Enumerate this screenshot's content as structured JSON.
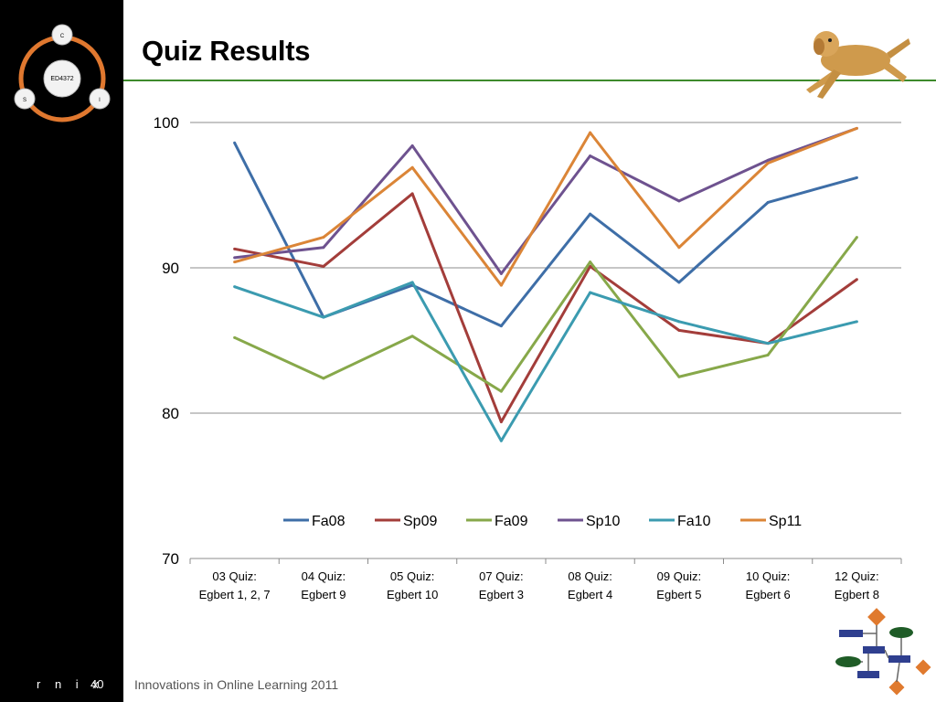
{
  "slide": {
    "title": "Quiz Results",
    "footer_author": "r n i x",
    "footer_page": "40",
    "footer_text": "Innovations in Online Learning 2011",
    "logo": {
      "center": "ED4372",
      "top": "C",
      "left": "S",
      "right": "I"
    }
  },
  "colors": {
    "rule": "#3d8a2c",
    "Fa08": "#3e6ea7",
    "Sp09": "#a33d3a",
    "Fa09": "#87a84a",
    "Sp10": "#6e528f",
    "Fa10": "#3b9bb0",
    "Sp11": "#db8537"
  },
  "chart_data": {
    "type": "line",
    "title": "",
    "xlabel": "",
    "ylabel": "",
    "y_ticks": [
      70,
      80,
      90,
      100
    ],
    "y_tick_labels": [
      "70",
      "80",
      "90",
      "100"
    ],
    "grid": true,
    "legend_position": "inside-bottom",
    "categories": [
      [
        "03 Quiz:",
        "Egbert 1, 2, 7"
      ],
      [
        "04 Quiz:",
        "Egbert 9"
      ],
      [
        "05 Quiz:",
        "Egbert 10"
      ],
      [
        "07 Quiz:",
        "Egbert 3"
      ],
      [
        "08 Quiz:",
        "Egbert 4"
      ],
      [
        "09 Quiz:",
        "Egbert 5"
      ],
      [
        "10 Quiz:",
        "Egbert 6"
      ],
      [
        "12 Quiz:",
        "Egbert 8"
      ]
    ],
    "series": [
      {
        "name": "Fa08",
        "values": [
          98.6,
          86.6,
          88.8,
          86.0,
          93.7,
          89.0,
          94.5,
          96.2
        ]
      },
      {
        "name": "Sp09",
        "values": [
          91.3,
          90.1,
          95.1,
          79.4,
          90.1,
          85.7,
          84.8,
          89.2
        ]
      },
      {
        "name": "Fa09",
        "values": [
          85.2,
          82.4,
          85.3,
          81.5,
          90.4,
          82.5,
          84.0,
          92.1
        ]
      },
      {
        "name": "Sp10",
        "values": [
          90.7,
          91.4,
          98.4,
          89.6,
          97.7,
          94.6,
          97.4,
          99.6
        ]
      },
      {
        "name": "Fa10",
        "values": [
          88.7,
          86.6,
          89.0,
          78.1,
          88.3,
          86.3,
          84.8,
          86.3
        ]
      },
      {
        "name": "Sp11",
        "values": [
          90.4,
          92.1,
          96.9,
          88.8,
          99.3,
          91.4,
          97.2,
          99.6
        ]
      }
    ]
  }
}
